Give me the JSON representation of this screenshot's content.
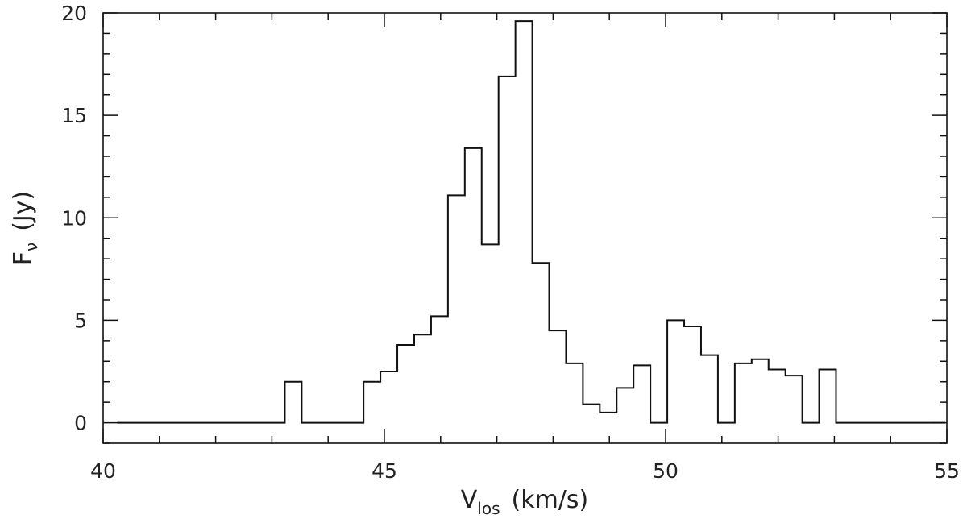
{
  "chart_data": {
    "type": "line",
    "style": "step histogram",
    "xlabel": "V",
    "xlabel_sub": "los",
    "xlabel_unit": "(km/s)",
    "ylabel": "F",
    "ylabel_sub": "ν",
    "ylabel_unit": "(Jy)",
    "xlim": [
      40,
      55
    ],
    "ylim": [
      -1,
      20
    ],
    "x_ticks": [
      "40",
      "45",
      "50",
      "55"
    ],
    "y_ticks": [
      "0",
      "5",
      "10",
      "15",
      "20"
    ],
    "grid": false,
    "bin_edges": [
      40.25,
      43.23,
      43.53,
      44.63,
      44.93,
      45.23,
      45.53,
      45.83,
      46.13,
      46.43,
      46.73,
      47.03,
      47.33,
      47.63,
      47.93,
      48.23,
      48.53,
      48.83,
      49.13,
      49.43,
      49.73,
      50.03,
      50.33,
      50.63,
      50.93,
      51.23,
      51.53,
      51.83,
      52.13,
      52.43,
      52.73,
      53.03,
      54.97
    ],
    "flux": [
      0.0,
      2.0,
      0.0,
      2.0,
      2.5,
      3.8,
      4.3,
      5.2,
      11.1,
      13.4,
      8.7,
      16.9,
      19.6,
      7.8,
      4.5,
      2.9,
      0.9,
      0.5,
      1.7,
      2.8,
      0.0,
      5.0,
      4.7,
      3.3,
      0.0,
      2.9,
      3.1,
      2.6,
      2.3,
      0.0,
      2.6,
      0.0
    ]
  }
}
